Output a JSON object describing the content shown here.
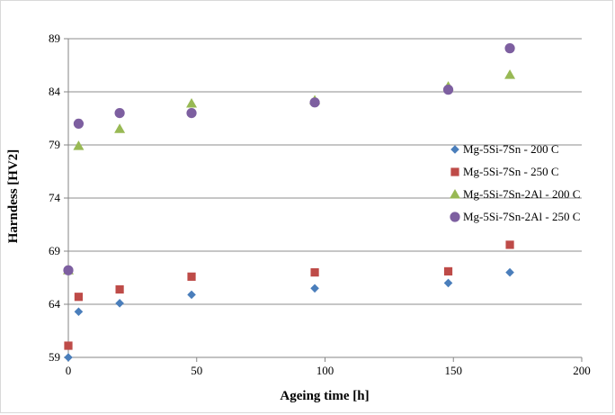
{
  "chart_data": {
    "type": "scatter",
    "title": "",
    "xlabel": "Ageing time [h]",
    "ylabel": "Harndess [HV2]",
    "xlim": [
      0,
      200
    ],
    "ylim": [
      59,
      89
    ],
    "x_ticks": [
      "0",
      "50",
      "100",
      "150",
      "200"
    ],
    "y_ticks": [
      "59",
      "64",
      "69",
      "74",
      "79",
      "84",
      "89"
    ],
    "grid": "horizontal",
    "legend_position": "right",
    "series": [
      {
        "name": "Mg-5Si-7Sn - 200 C",
        "marker": "diamond",
        "color": "#4a7ebb",
        "x": [
          0,
          4,
          20,
          48,
          96,
          148,
          172
        ],
        "y": [
          59.0,
          63.3,
          64.1,
          64.9,
          65.5,
          66.0,
          67.0
        ]
      },
      {
        "name": "Mg-5Si-7Sn - 250 C",
        "marker": "square",
        "color": "#be4b48",
        "x": [
          0,
          4,
          20,
          48,
          96,
          148,
          172
        ],
        "y": [
          60.1,
          64.7,
          65.4,
          66.6,
          67.0,
          67.1,
          69.6
        ]
      },
      {
        "name": "Mg-5Si-7Sn-2Al - 200 C",
        "marker": "triangle",
        "color": "#98b954",
        "x": [
          0,
          4,
          20,
          48,
          96,
          148,
          172
        ],
        "y": [
          67.2,
          78.9,
          80.5,
          82.9,
          83.2,
          84.5,
          85.6
        ]
      },
      {
        "name": "Mg-5Si-7Sn-2Al - 250 C",
        "marker": "circle",
        "color": "#7d5fa0",
        "x": [
          0,
          4,
          20,
          48,
          96,
          148,
          172
        ],
        "y": [
          67.2,
          81.0,
          82.0,
          82.0,
          83.0,
          84.2,
          88.1
        ]
      }
    ]
  }
}
